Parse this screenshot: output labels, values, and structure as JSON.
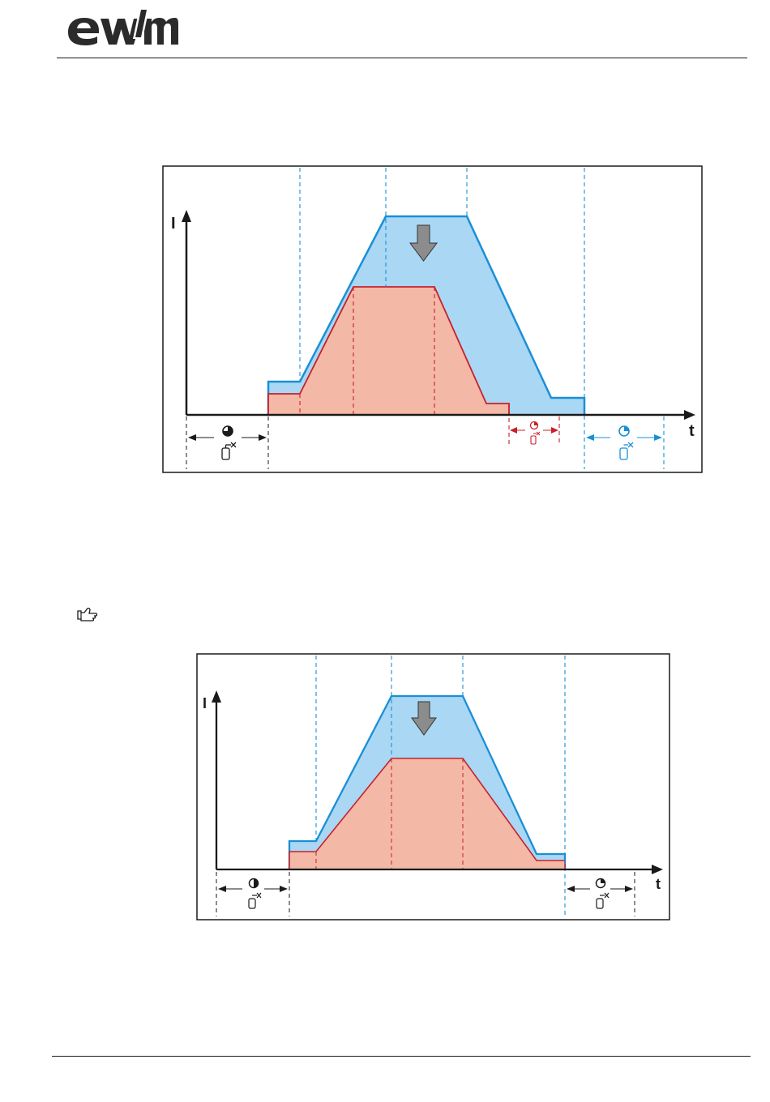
{
  "brand": {
    "logo_text": "ewm"
  },
  "diagrams": [
    {
      "axis_y_label": "I",
      "axis_x_label": "t",
      "colors": {
        "upper_fill": "#a9d7f4",
        "upper_line": "#1a8fd6",
        "lower_fill": "#f4b8a6",
        "lower_line": "#c8202a",
        "arrow": "#8c8c8c",
        "grid_blue": "#1a8fd6",
        "grid_red": "#c8202a"
      },
      "icons": [
        "clock-icon",
        "gas-bottle-icon",
        "down-arrow-icon"
      ]
    },
    {
      "axis_y_label": "I",
      "axis_x_label": "t",
      "colors": {
        "upper_fill": "#a9d7f4",
        "upper_line": "#1a8fd6",
        "lower_fill": "#f4b8a6",
        "lower_line": "#c8202a",
        "arrow": "#8c8c8c",
        "grid_blue": "#1a8fd6",
        "grid_red": "#c8202a"
      },
      "icons": [
        "clock-icon",
        "gas-bottle-icon",
        "down-arrow-icon"
      ]
    }
  ],
  "hint_icon": "pointing-hand-icon"
}
